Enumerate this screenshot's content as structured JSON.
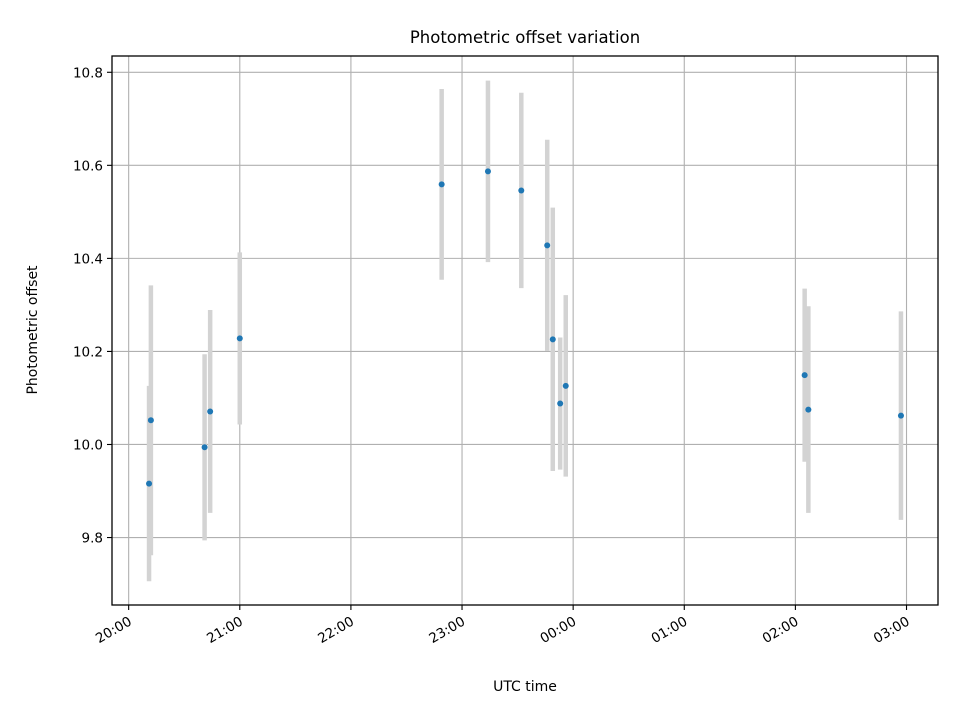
{
  "chart_data": {
    "type": "scatter",
    "title": "Photometric offset variation",
    "xlabel": "UTC time",
    "ylabel": "Photometric offset",
    "x_tick_labels": [
      "20:00",
      "21:00",
      "22:00",
      "23:00",
      "00:00",
      "01:00",
      "02:00",
      "03:00"
    ],
    "y_tick_labels": [
      "9.8",
      "10.0",
      "10.2",
      "10.4",
      "10.6",
      "10.8"
    ],
    "xlim": [
      "19:51",
      "03:17"
    ],
    "ylim": [
      9.655,
      10.835
    ],
    "grid": true,
    "point_color": "#1f77b4",
    "errorbar_color": "#d3d3d3",
    "points": [
      {
        "t": "20:11",
        "y": 9.916,
        "err": 0.21
      },
      {
        "t": "20:12",
        "y": 10.052,
        "err": 0.29
      },
      {
        "t": "20:41",
        "y": 9.994,
        "err": 0.2
      },
      {
        "t": "20:44",
        "y": 10.071,
        "err": 0.218
      },
      {
        "t": "21:00",
        "y": 10.228,
        "err": 0.185
      },
      {
        "t": "22:49",
        "y": 10.559,
        "err": 0.205
      },
      {
        "t": "23:14",
        "y": 10.587,
        "err": 0.195
      },
      {
        "t": "23:32",
        "y": 10.546,
        "err": 0.21
      },
      {
        "t": "23:46",
        "y": 10.428,
        "err": 0.227
      },
      {
        "t": "23:49",
        "y": 10.226,
        "err": 0.283
      },
      {
        "t": "23:53",
        "y": 10.088,
        "err": 0.142
      },
      {
        "t": "23:56",
        "y": 10.126,
        "err": 0.195
      },
      {
        "t": "02:05",
        "y": 10.149,
        "err": 0.186
      },
      {
        "t": "02:07",
        "y": 10.075,
        "err": 0.222
      },
      {
        "t": "02:57",
        "y": 10.062,
        "err": 0.224
      }
    ]
  }
}
